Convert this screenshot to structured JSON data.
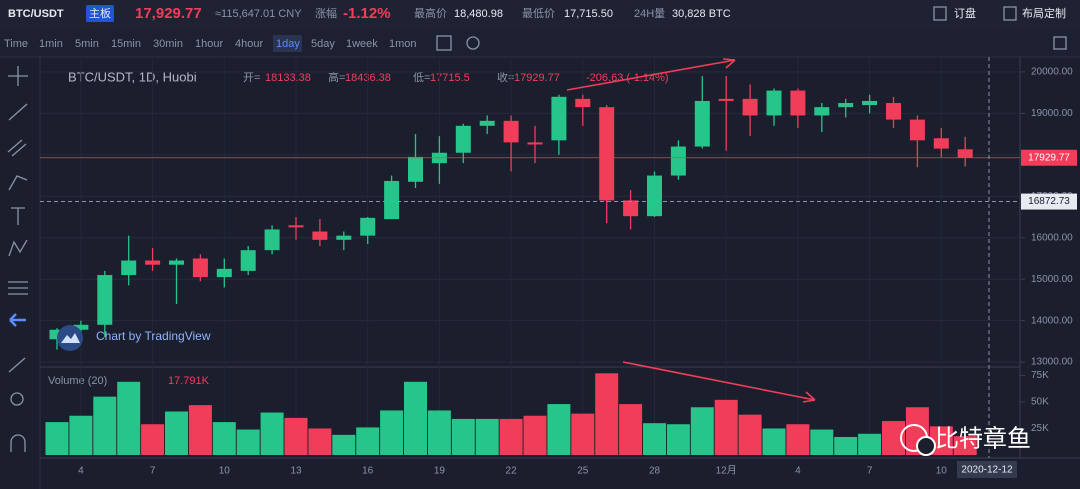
{
  "header": {
    "pair": "BTC/USDT",
    "board": "主板",
    "price": "17,929.77",
    "cny": "≈115,647.01 CNY",
    "change_label": "涨幅",
    "change": "-1.12%",
    "high_label": "最高价",
    "high": "18,480.98",
    "low_label": "最低价",
    "low": "17,715.50",
    "volume_label": "24H量",
    "volume": "30,828 BTC",
    "buttons": [
      "订盘",
      "布局定制"
    ]
  },
  "toolbar": {
    "intervals": [
      "Time",
      "1min",
      "5min",
      "15min",
      "30min",
      "1hour",
      "4hour",
      "1day",
      "5day",
      "1week",
      "1mon"
    ],
    "active": 7
  },
  "chart_data": {
    "type": "candlestick",
    "legend": {
      "symbol": "BTC/USDT, 1D, Huobi",
      "labels": [
        "开=",
        "高=",
        "低=",
        "收="
      ],
      "change": "-206.63 (-1.14%)"
    },
    "categories": [
      null,
      "4",
      null,
      null,
      "7",
      null,
      null,
      "10",
      null,
      null,
      "13",
      null,
      null,
      "16",
      null,
      null,
      "19",
      null,
      null,
      "22",
      null,
      null,
      "25",
      null,
      null,
      "28",
      null,
      null,
      "12月",
      null,
      null,
      "4",
      null,
      null,
      "7",
      null,
      null,
      "10",
      null
    ],
    "open": [
      13550,
      13780,
      13900,
      15100,
      15450,
      15350,
      15500,
      15050,
      15200,
      15700,
      16300,
      16150,
      15950,
      16050,
      16450,
      17350,
      17800,
      18050,
      18700,
      18820,
      18300,
      18350,
      19350,
      19150,
      16900,
      16520,
      17500,
      18200,
      19350,
      19350,
      18950,
      19550,
      18950,
      19150,
      19200,
      19250,
      18850,
      18400,
      18133.38
    ],
    "high": [
      13820,
      14000,
      15200,
      16050,
      15750,
      15500,
      15600,
      15500,
      15800,
      16300,
      16500,
      16450,
      16150,
      16500,
      17500,
      18500,
      18450,
      18750,
      18950,
      18950,
      18700,
      19450,
      19450,
      19200,
      17150,
      17600,
      18350,
      19900,
      19900,
      19700,
      19600,
      19600,
      19250,
      19350,
      19450,
      19400,
      18950,
      18650,
      18436.38
    ],
    "low": [
      13300,
      13550,
      13600,
      14850,
      15200,
      14400,
      14950,
      14800,
      15100,
      15600,
      15950,
      15800,
      15700,
      15850,
      16450,
      17200,
      17300,
      17800,
      18500,
      17600,
      17800,
      18000,
      18700,
      16350,
      16200,
      16500,
      17400,
      18150,
      18100,
      18450,
      18700,
      18650,
      18550,
      18900,
      19000,
      18650,
      17700,
      17950,
      17715.5
    ],
    "close": [
      13780,
      13900,
      15100,
      15450,
      15350,
      15450,
      15050,
      15250,
      15700,
      16200,
      16250,
      15950,
      16050,
      16480,
      17370,
      17950,
      18050,
      18700,
      18820,
      18300,
      18250,
      19400,
      19150,
      16900,
      16520,
      17500,
      18200,
      19300,
      19300,
      18950,
      19550,
      18950,
      19150,
      19250,
      19300,
      18850,
      18350,
      18150,
      17929.77
    ],
    "up_color": "#26c58a",
    "down_color": "#f23d5a",
    "ylim": [
      12930,
      20360
    ],
    "yticks": [
      {
        "value": 13000,
        "label": "13000.00"
      },
      {
        "value": 14000,
        "label": "14000.00"
      },
      {
        "value": 15000,
        "label": "15000.00"
      },
      {
        "value": 16000,
        "label": "16000.00"
      },
      {
        "value": 17000,
        "label": "17000.00"
      },
      {
        "value": 18000,
        "label": "18000.00"
      },
      {
        "value": 19000,
        "label": "19000.00"
      },
      {
        "value": 20000,
        "label": "20000.00"
      }
    ],
    "volume": {
      "name": "Volume (20)",
      "values": [
        31,
        37,
        55,
        69,
        29,
        41,
        47,
        31,
        24,
        40,
        35,
        25,
        19,
        26,
        42,
        69,
        42,
        34,
        34,
        34,
        37,
        48,
        39,
        77,
        48,
        30,
        29,
        45,
        52,
        38,
        25,
        29,
        24,
        17,
        20,
        32,
        45,
        27,
        17.791
      ],
      "last_label": "17.791K",
      "ylim": [
        0,
        82
      ],
      "yticks": [
        {
          "value": 25,
          "label": "25K"
        },
        {
          "value": 50,
          "label": "50K"
        },
        {
          "value": 75,
          "label": "75K"
        }
      ]
    },
    "crosshair": {
      "price": 16872.73,
      "date": "2020-12-12"
    },
    "watermark": "Chart by TradingView"
  },
  "brand": "比特章鱼"
}
